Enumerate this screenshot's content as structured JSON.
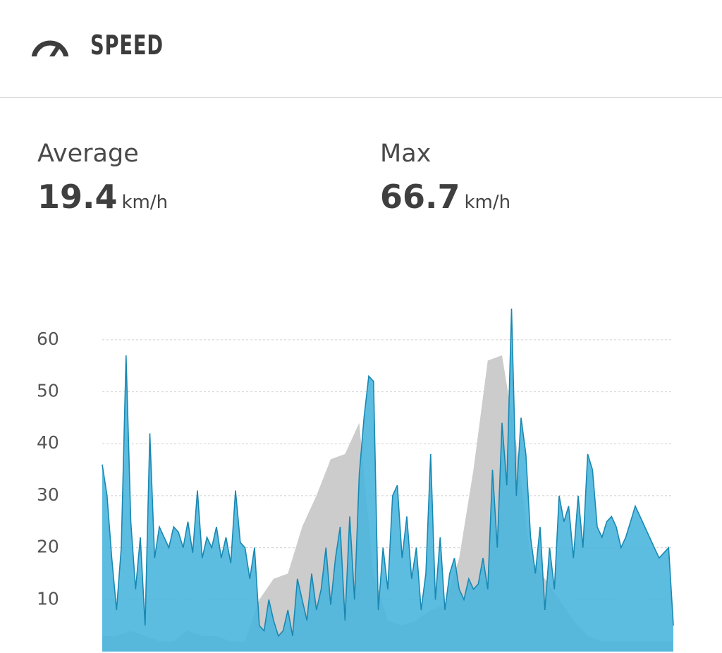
{
  "header": {
    "title": "SPEED"
  },
  "stats": [
    {
      "label": "Average",
      "value": "19.4",
      "unit": "km/h"
    },
    {
      "label": "Max",
      "value": "66.7",
      "unit": "km/h"
    }
  ],
  "chart_data": {
    "type": "area",
    "ylim": [
      0,
      68
    ],
    "yticks": [
      10,
      20,
      30,
      40,
      50,
      60
    ],
    "grid": true,
    "series": [
      {
        "color": "#cccccc",
        "values": [
          3,
          3,
          4,
          3,
          2,
          2,
          4,
          3,
          3,
          2,
          2,
          10,
          14,
          15,
          24,
          30,
          37,
          38,
          44,
          15,
          6,
          5,
          6,
          8,
          9,
          18,
          35,
          56,
          57,
          40,
          18,
          14,
          10,
          6,
          3,
          2,
          2,
          2,
          2,
          2,
          2
        ]
      },
      {
        "color": "#4ab6de",
        "line_color": "#1a88b2",
        "values": [
          36,
          30,
          18,
          8,
          20,
          57,
          25,
          12,
          22,
          5,
          42,
          18,
          24,
          22,
          20,
          24,
          23,
          20,
          25,
          19,
          31,
          18,
          22,
          20,
          24,
          18,
          22,
          17,
          31,
          21,
          20,
          14,
          20,
          5,
          4,
          10,
          6,
          3,
          4,
          8,
          3,
          14,
          10,
          6,
          15,
          8,
          12,
          20,
          9,
          18,
          24,
          6,
          26,
          10,
          34,
          45,
          53,
          52,
          8,
          20,
          12,
          30,
          32,
          18,
          26,
          14,
          20,
          8,
          15,
          38,
          10,
          22,
          8,
          15,
          18,
          12,
          10,
          14,
          12,
          13,
          18,
          12,
          35,
          20,
          44,
          32,
          66,
          30,
          45,
          38,
          22,
          15,
          24,
          8,
          20,
          12,
          30,
          25,
          28,
          18,
          30,
          20,
          38,
          35,
          24,
          22,
          25,
          26,
          24,
          20,
          22,
          25,
          28,
          26,
          24,
          22,
          20,
          18,
          19,
          20,
          5
        ]
      }
    ]
  }
}
